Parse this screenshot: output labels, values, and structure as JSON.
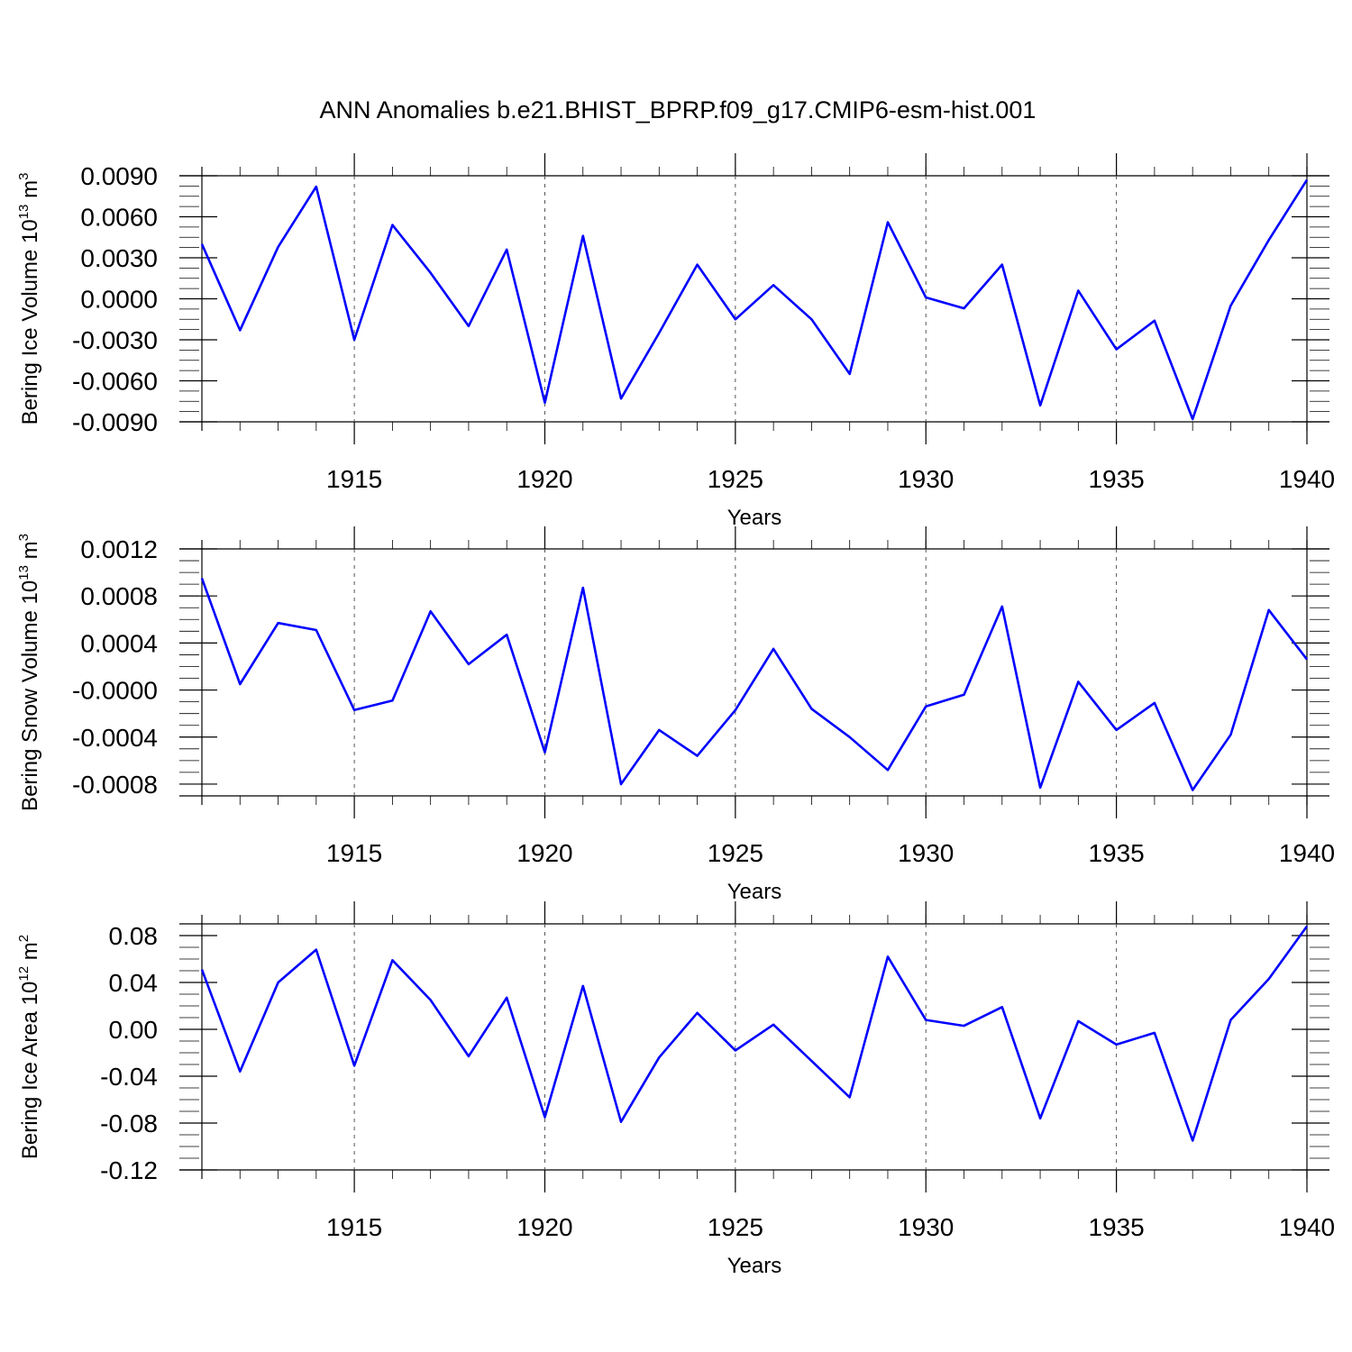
{
  "title": "ANN Anomalies b.e21.BHIST_BPRP.f09_g17.CMIP6-esm-hist.001",
  "line_color": "#0000ff",
  "chart_data": [
    {
      "type": "line",
      "ylabel_text": "Bering Ice Volume 10",
      "ylabel_exp": "13",
      "ylabel_unit": "m",
      "ylabel_unit_exp": "3",
      "xlabel": "Years",
      "xlim": [
        1911,
        1940
      ],
      "ylim": [
        -0.009,
        0.009
      ],
      "y_ticks": [
        "0.0090",
        "0.0060",
        "0.0030",
        "0.0000",
        "-0.0030",
        "-0.0060",
        "-0.0090"
      ],
      "y_tick_values": [
        0.009,
        0.006,
        0.003,
        0.0,
        -0.003,
        -0.006,
        -0.009
      ],
      "x_ticks": [
        "1915",
        "1920",
        "1925",
        "1930",
        "1935",
        "1940"
      ],
      "x_tick_values": [
        1915,
        1920,
        1925,
        1930,
        1935,
        1940
      ],
      "x": [
        1911,
        1912,
        1913,
        1914,
        1915,
        1916,
        1917,
        1918,
        1919,
        1920,
        1921,
        1922,
        1923,
        1924,
        1925,
        1926,
        1927,
        1928,
        1929,
        1930,
        1931,
        1932,
        1933,
        1934,
        1935,
        1936,
        1937,
        1938,
        1939,
        1940
      ],
      "series": [
        {
          "name": "Bering Ice Volume",
          "values": [
            0.004,
            -0.0023,
            0.0038,
            0.0082,
            -0.003,
            0.0054,
            0.0019,
            -0.002,
            0.0036,
            -0.0076,
            0.0046,
            -0.0073,
            -0.0025,
            0.0025,
            -0.0015,
            0.001,
            -0.0015,
            -0.0055,
            0.0056,
            0.0001,
            -0.0007,
            0.0025,
            -0.0078,
            0.0006,
            -0.0037,
            -0.0016,
            -0.0088,
            -0.0005,
            0.0043,
            0.0087
          ]
        }
      ]
    },
    {
      "type": "line",
      "ylabel_text": "Bering Snow Volume 10",
      "ylabel_exp": "13",
      "ylabel_unit": "m",
      "ylabel_unit_exp": "3",
      "xlabel": "Years",
      "xlim": [
        1911,
        1940
      ],
      "ylim": [
        -0.0009,
        0.0012
      ],
      "y_ticks": [
        "0.0012",
        "0.0008",
        "0.0004",
        "-0.0000",
        "-0.0004",
        "-0.0008"
      ],
      "y_tick_values": [
        0.0012,
        0.0008,
        0.0004,
        0.0,
        -0.0004,
        -0.0008
      ],
      "x_ticks": [
        "1915",
        "1920",
        "1925",
        "1930",
        "1935",
        "1940"
      ],
      "x_tick_values": [
        1915,
        1920,
        1925,
        1930,
        1935,
        1940
      ],
      "x": [
        1911,
        1912,
        1913,
        1914,
        1915,
        1916,
        1917,
        1918,
        1919,
        1920,
        1921,
        1922,
        1923,
        1924,
        1925,
        1926,
        1927,
        1928,
        1929,
        1930,
        1931,
        1932,
        1933,
        1934,
        1935,
        1936,
        1937,
        1938,
        1939,
        1940
      ],
      "series": [
        {
          "name": "Bering Snow Volume",
          "values": [
            0.00095,
            5e-05,
            0.00057,
            0.00051,
            -0.00017,
            -9e-05,
            0.00067,
            0.00022,
            0.00047,
            -0.00053,
            0.00087,
            -0.0008,
            -0.00034,
            -0.00056,
            -0.00017,
            0.00035,
            -0.00016,
            -0.0004,
            -0.00068,
            -0.00014,
            -4e-05,
            0.00071,
            -0.00083,
            7e-05,
            -0.00034,
            -0.00011,
            -0.00085,
            -0.00038,
            0.00068,
            0.00026
          ]
        }
      ]
    },
    {
      "type": "line",
      "ylabel_text": "Bering Ice Area 10",
      "ylabel_exp": "12",
      "ylabel_unit": "m",
      "ylabel_unit_exp": "2",
      "xlabel": "Years",
      "xlim": [
        1911,
        1940
      ],
      "ylim": [
        -0.12,
        0.09
      ],
      "y_ticks": [
        "0.08",
        "0.04",
        "0.00",
        "-0.04",
        "-0.08",
        "-0.12"
      ],
      "y_tick_values": [
        0.08,
        0.04,
        0.0,
        -0.04,
        -0.08,
        -0.12
      ],
      "x_ticks": [
        "1915",
        "1920",
        "1925",
        "1930",
        "1935",
        "1940"
      ],
      "x_tick_values": [
        1915,
        1920,
        1925,
        1930,
        1935,
        1940
      ],
      "x": [
        1911,
        1912,
        1913,
        1914,
        1915,
        1916,
        1917,
        1918,
        1919,
        1920,
        1921,
        1922,
        1923,
        1924,
        1925,
        1926,
        1927,
        1928,
        1929,
        1930,
        1931,
        1932,
        1933,
        1934,
        1935,
        1936,
        1937,
        1938,
        1939,
        1940
      ],
      "series": [
        {
          "name": "Bering Ice Area",
          "values": [
            0.051,
            -0.036,
            0.04,
            0.068,
            -0.031,
            0.059,
            0.025,
            -0.023,
            0.027,
            -0.075,
            0.037,
            -0.079,
            -0.024,
            0.014,
            -0.018,
            0.004,
            -0.027,
            -0.058,
            0.062,
            0.008,
            0.003,
            0.019,
            -0.076,
            0.007,
            -0.013,
            -0.003,
            -0.095,
            0.008,
            0.043,
            0.088
          ]
        }
      ]
    }
  ]
}
